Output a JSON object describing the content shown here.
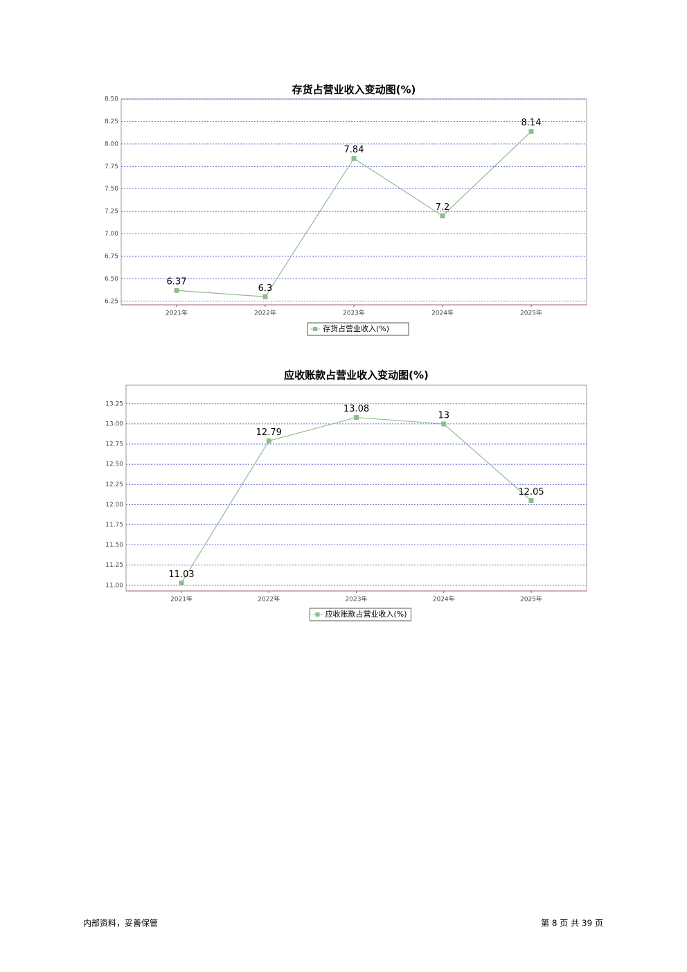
{
  "chart_data": [
    {
      "type": "line",
      "title": "存货占营业收入变动图(%)",
      "categories": [
        "2021年",
        "2022年",
        "2023年",
        "2024年",
        "2025年"
      ],
      "series": [
        {
          "name": "存货占营业收入(%)",
          "color": "#8fbc8f",
          "values": [
            6.37,
            6.3,
            7.84,
            7.2,
            8.14
          ]
        }
      ],
      "ylim": [
        6.21,
        8.5
      ],
      "yticks": [
        {
          "value": 6.25,
          "label": "6.25"
        },
        {
          "value": 6.5,
          "label": "6.50"
        },
        {
          "value": 6.75,
          "label": "6.75"
        },
        {
          "value": 7,
          "label": "7.00"
        },
        {
          "value": 7.25,
          "label": "7.25"
        },
        {
          "value": 7.5,
          "label": "7.50"
        },
        {
          "value": 7.75,
          "label": "7.75"
        },
        {
          "value": 8,
          "label": "8.00"
        },
        {
          "value": 8.25,
          "label": "8.25"
        },
        {
          "value": 8.5,
          "label": "8.50"
        }
      ],
      "grid": true,
      "legend": "bottom"
    },
    {
      "type": "line",
      "title": "应收账款占营业收入变动图(%)",
      "categories": [
        "2021年",
        "2022年",
        "2023年",
        "2024年",
        "2025年"
      ],
      "series": [
        {
          "name": "应收账款占营业收入(%)",
          "color": "#8fbc8f",
          "values": [
            11.03,
            12.79,
            13.08,
            13,
            12.05
          ]
        }
      ],
      "ylim": [
        10.93,
        13.48
      ],
      "yticks": [
        {
          "value": 11,
          "label": "11.00"
        },
        11.25,
        {
          "value": 11.5,
          "label": "11.50"
        },
        11.75,
        {
          "value": 12,
          "label": "12.00"
        },
        12.25,
        {
          "value": 12.5,
          "label": "12.50"
        },
        12.75,
        {
          "value": 13,
          "label": "13.00"
        },
        13.25
      ],
      "grid": true,
      "legend": "bottom"
    }
  ],
  "footer": {
    "note": "内部资料，妥善保管",
    "page": "第 8 页 共 39 页"
  }
}
